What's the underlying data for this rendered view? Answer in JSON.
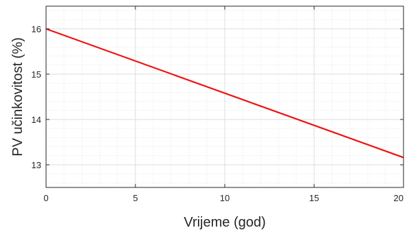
{
  "chart_data": {
    "type": "line",
    "title": "",
    "xlabel": "Vrijeme (god)",
    "ylabel": "PV učinkovitost (%)",
    "xlim": [
      0,
      20
    ],
    "ylim": [
      12.5,
      16.5
    ],
    "xticks": [
      0,
      5,
      10,
      15,
      20
    ],
    "xtick_labels": [
      "0",
      "5",
      "10",
      "15",
      "20"
    ],
    "yticks": [
      13,
      14,
      15,
      16
    ],
    "ytick_labels": [
      "13",
      "14",
      "15",
      "16"
    ],
    "grid": true,
    "minor_grid": true,
    "series": [
      {
        "color": "#ee1111",
        "x": [
          0,
          20
        ],
        "y": [
          16,
          13.16
        ]
      }
    ]
  }
}
